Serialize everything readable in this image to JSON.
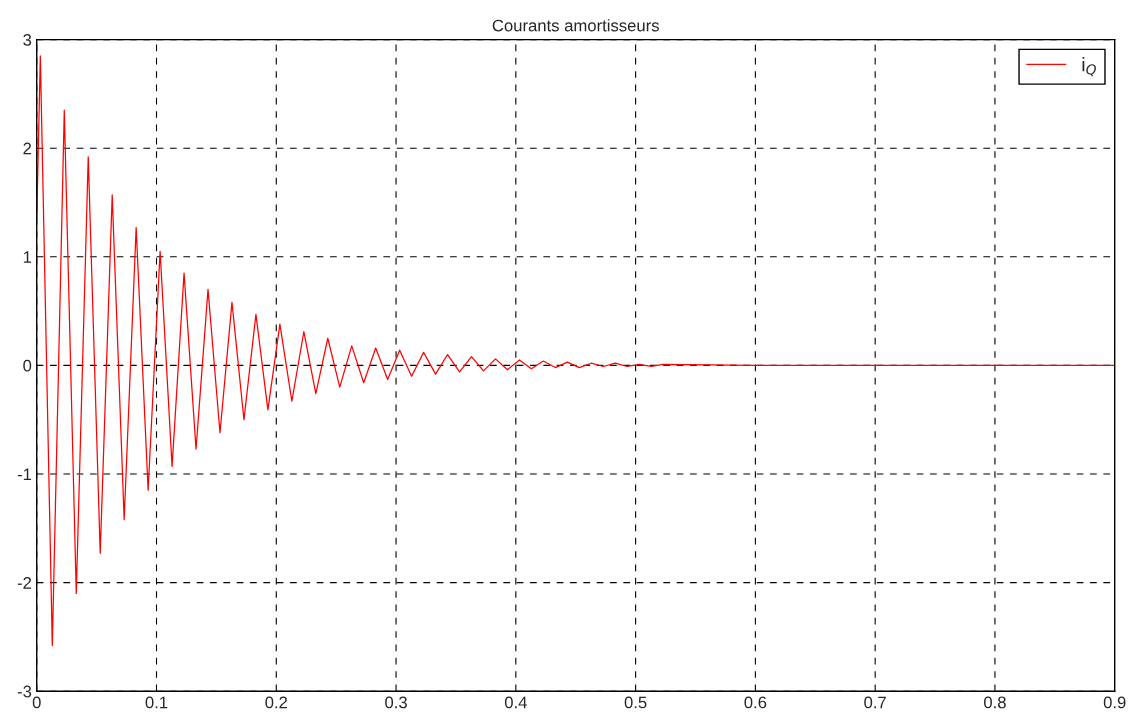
{
  "chart_data": {
    "type": "line",
    "title": "Courants amortisseurs",
    "x": [
      0,
      0.003,
      0.013,
      0.023,
      0.033,
      0.043,
      0.053,
      0.063,
      0.073,
      0.083,
      0.093,
      0.103,
      0.113,
      0.123,
      0.133,
      0.143,
      0.153,
      0.163,
      0.173,
      0.183,
      0.193,
      0.203,
      0.213,
      0.223,
      0.233,
      0.243,
      0.253,
      0.263,
      0.273,
      0.283,
      0.293,
      0.303,
      0.313,
      0.323,
      0.333,
      0.343,
      0.353,
      0.363,
      0.373,
      0.383,
      0.393,
      0.403,
      0.413,
      0.423,
      0.433,
      0.443,
      0.453,
      0.463,
      0.473,
      0.483,
      0.493,
      0.503,
      0.513,
      0.523,
      0.6,
      0.7,
      0.8,
      0.9
    ],
    "series": [
      {
        "name": "i$_{Q}$",
        "color": "#ff0000",
        "values": [
          1.35,
          2.85,
          -2.58,
          2.35,
          -2.1,
          1.92,
          -1.73,
          1.57,
          -1.42,
          1.27,
          -1.15,
          1.05,
          -0.93,
          0.85,
          -0.77,
          0.7,
          -0.62,
          0.58,
          -0.5,
          0.47,
          -0.41,
          0.38,
          -0.33,
          0.31,
          -0.26,
          0.25,
          -0.2,
          0.18,
          -0.16,
          0.16,
          -0.13,
          0.14,
          -0.1,
          0.12,
          -0.08,
          0.1,
          -0.06,
          0.08,
          -0.05,
          0.06,
          -0.04,
          0.05,
          -0.03,
          0.04,
          -0.02,
          0.03,
          -0.02,
          0.02,
          -0.01,
          0.02,
          -0.01,
          0.01,
          -0.01,
          0.01,
          0,
          0,
          0,
          0
        ]
      }
    ],
    "xlim": [
      0,
      0.9
    ],
    "ylim": [
      -3,
      3
    ],
    "xticks": [
      0,
      0.1,
      0.2,
      0.3,
      0.4,
      0.5,
      0.6,
      0.7,
      0.8,
      0.9
    ],
    "yticks": [
      -3,
      -2,
      -1,
      0,
      1,
      2,
      3
    ],
    "grid": true,
    "legend": "top right",
    "line_style": "solid",
    "marker": "none"
  }
}
